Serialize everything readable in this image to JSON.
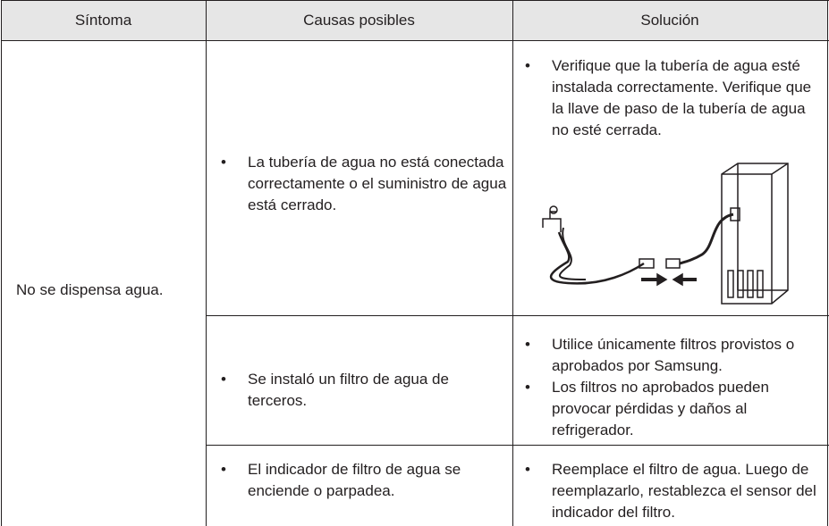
{
  "table": {
    "headers": [
      "Síntoma",
      "Causas posibles",
      "Solución"
    ],
    "symptom": "No se dispensa agua.",
    "rows": [
      {
        "cause": "La tubería de agua no está conectada correctamente o el suministro de agua está cerrado.",
        "solution": [
          "Verifique que la tubería de agua esté instalada correctamente. Verifique que la llave de paso de la tubería de agua no esté cerrada."
        ]
      },
      {
        "cause": "Se instaló un filtro de agua de terceros.",
        "solution": [
          "Utilice únicamente filtros provistos o aprobados por Samsung.",
          "Los filtros no aprobados pueden provocar pérdidas y daños al refrigerador."
        ]
      },
      {
        "cause": "El indicador de filtro de agua se enciende o parpadea.",
        "solution": [
          "Reemplace el filtro de agua. Luego de reemplazarlo, restablezca el sensor del indicador del filtro."
        ]
      }
    ]
  }
}
